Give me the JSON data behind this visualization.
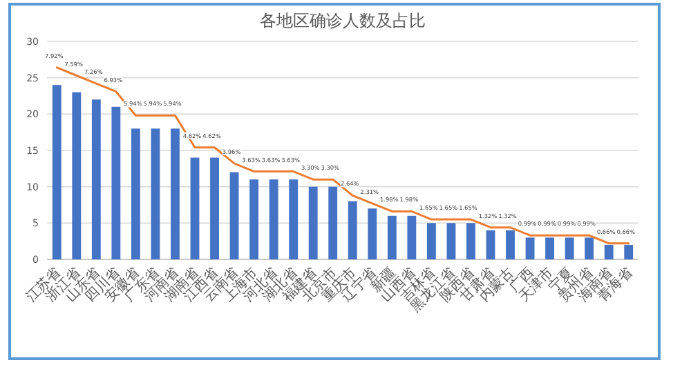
{
  "chart_data": {
    "type": "bar",
    "title": "各地区确诊人数及占比",
    "categories": [
      "江苏省",
      "浙江省",
      "山东省",
      "四川省",
      "安徽省",
      "广东省",
      "河南省",
      "湖南省",
      "江西省",
      "云南省",
      "上海市",
      "河北省",
      "湖北省",
      "福建省",
      "北京市",
      "重庆市",
      "辽宁省",
      "新疆",
      "山西省",
      "吉林省",
      "黑龙江省",
      "陕西省",
      "甘肃省",
      "内蒙古",
      "广西",
      "天津市",
      "宁夏",
      "贵州省",
      "海南省",
      "青海省"
    ],
    "series": [
      {
        "color": "#4472c4",
        "values": [
          24,
          23,
          22,
          21,
          18,
          18,
          18,
          14,
          14,
          12,
          11,
          11,
          11,
          10,
          10,
          8,
          7,
          6,
          6,
          5,
          5,
          5,
          4,
          4,
          3,
          3,
          3,
          3,
          2,
          2
        ]
      },
      {
        "type": "line",
        "axis": "y2",
        "color": "#ed7d31",
        "values": [
          7.92,
          7.59,
          7.26,
          6.93,
          5.94,
          5.94,
          5.94,
          4.62,
          4.62,
          3.96,
          3.63,
          3.63,
          3.63,
          3.3,
          3.3,
          2.64,
          2.31,
          1.98,
          1.98,
          1.65,
          1.65,
          1.65,
          1.32,
          1.32,
          0.99,
          0.99,
          0.99,
          0.99,
          0.66,
          0.66
        ],
        "value_labels": [
          "7.92%",
          "7.59%",
          "7.26%",
          "6.93%",
          "5.94%",
          "5.94%",
          "5.94%",
          "4.62%",
          "4.62%",
          "3.96%",
          "3.63%",
          "3.63%",
          "3.63%",
          "3.30%",
          "3.30%",
          "2.64%",
          "2.31%",
          "1.98%",
          "1.98%",
          "1.65%",
          "1.65%",
          "1.65%",
          "1.32%",
          "1.32%",
          "0.99%",
          "0.99%",
          "0.99%",
          "0.99%",
          "0.66%",
          "0.66%"
        ]
      }
    ],
    "ylim": [
      0,
      30
    ],
    "yticks": [
      0,
      5,
      10,
      15,
      20,
      25,
      30
    ],
    "y2lim": [
      0,
      9
    ],
    "grid": "y"
  }
}
